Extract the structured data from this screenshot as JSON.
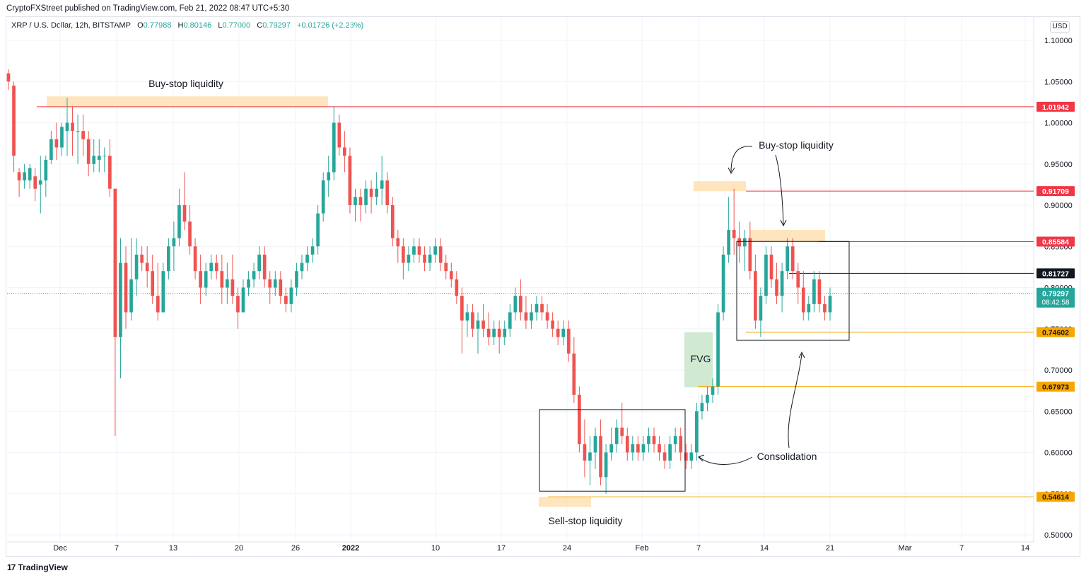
{
  "header": {
    "publisher": "CryptoFXStreet published on TradingView.com, Feb 21, 2022 08:47 UTC+5:30"
  },
  "legend": {
    "symbol": "XRP / U.S. Dollar, 12h, BITSTAMP",
    "open_label": "O",
    "open": "0.77988",
    "high_label": "H",
    "high": "0.80146",
    "low_label": "L",
    "low": "0.77000",
    "close_label": "C",
    "close": "0.79297",
    "change": "+0.01726 (+2.23%)"
  },
  "currency_button": "USD",
  "footer": {
    "brand": "TradingView",
    "logo": "17"
  },
  "colors": {
    "up": "#26a69a",
    "down": "#ef5350",
    "red_level": "#f23645",
    "orange_level": "#f7a600",
    "liquidity_zone": "#ffe0b2",
    "fvg_zone": "#c8e6c9",
    "current_price": "#26a69a",
    "black_level": "#131722"
  },
  "chart_data": {
    "type": "candlestick",
    "timeframe": "12h",
    "ylim": [
      0.49,
      1.1
    ],
    "y_ticks": [
      "1.10000",
      "1.05000",
      "1.00000",
      "0.95000",
      "0.90000",
      "0.85000",
      "0.80000",
      "0.75000",
      "0.70000",
      "0.65000",
      "0.60000",
      "0.55000",
      "0.50000"
    ],
    "x_ticks": [
      "Dec",
      "7",
      "13",
      "20",
      "26",
      "2022",
      "10",
      "17",
      "24",
      "Feb",
      "7",
      "14",
      "21",
      "Mar",
      "7",
      "14"
    ],
    "price_levels": [
      {
        "value": "1.01942",
        "color": "red"
      },
      {
        "value": "0.91709",
        "color": "red"
      },
      {
        "value": "0.85584",
        "color": "red"
      },
      {
        "value": "0.81727",
        "color": "black"
      },
      {
        "value": "0.74602",
        "color": "orange"
      },
      {
        "value": "0.67973",
        "color": "orange"
      },
      {
        "value": "0.54614",
        "color": "orange"
      }
    ],
    "current_price": {
      "value": "0.79297",
      "countdown": "08:42:58"
    },
    "annotations": [
      {
        "text": "Buy-stop liquidity",
        "kind": "zone",
        "price_range": [
          1.019,
          1.032
        ]
      },
      {
        "text": "Buy-stop liquidity",
        "kind": "zone",
        "price_range": [
          0.917,
          0.929
        ]
      },
      {
        "text": "",
        "kind": "zone",
        "price_range": [
          0.856,
          0.87
        ]
      },
      {
        "text": "Sell-stop liquidity",
        "kind": "zone",
        "price_range": [
          0.534,
          0.546
        ]
      },
      {
        "text": "FVG",
        "kind": "gap",
        "price_range": [
          0.679,
          0.746
        ]
      },
      {
        "text": "Consolidation",
        "kind": "box",
        "price_range": [
          0.553,
          0.652
        ]
      },
      {
        "text": "",
        "kind": "box",
        "price_range": [
          0.736,
          0.856
        ]
      }
    ],
    "candles": [
      [
        1.06,
        1.065,
        1.04,
        1.05
      ],
      [
        1.045,
        1.05,
        0.94,
        0.96
      ],
      [
        0.94,
        0.945,
        0.91,
        0.93
      ],
      [
        0.93,
        0.95,
        0.92,
        0.94
      ],
      [
        0.93,
        0.95,
        0.92,
        0.945
      ],
      [
        0.935,
        0.945,
        0.905,
        0.92
      ],
      [
        0.925,
        0.96,
        0.89,
        0.93
      ],
      [
        0.93,
        0.96,
        0.91,
        0.955
      ],
      [
        0.955,
        0.99,
        0.95,
        0.98
      ],
      [
        0.98,
        1.0,
        0.955,
        0.97
      ],
      [
        0.97,
        1.0,
        0.96,
        0.995
      ],
      [
        0.99,
        1.03,
        0.96,
        1.0
      ],
      [
        1.0,
        1.02,
        0.96,
        0.99
      ],
      [
        0.99,
        1.01,
        0.95,
        0.99
      ],
      [
        0.99,
        1.01,
        0.96,
        0.98
      ],
      [
        0.98,
        0.99,
        0.935,
        0.95
      ],
      [
        0.95,
        0.98,
        0.94,
        0.96
      ],
      [
        0.955,
        0.98,
        0.94,
        0.96
      ],
      [
        0.96,
        0.97,
        0.94,
        0.96
      ],
      [
        0.96,
        0.98,
        0.91,
        0.92
      ],
      [
        0.92,
        0.92,
        0.62,
        0.74
      ],
      [
        0.74,
        0.86,
        0.69,
        0.83
      ],
      [
        0.83,
        0.85,
        0.75,
        0.77
      ],
      [
        0.77,
        0.86,
        0.76,
        0.81
      ],
      [
        0.81,
        0.86,
        0.79,
        0.84
      ],
      [
        0.84,
        0.85,
        0.82,
        0.83
      ],
      [
        0.83,
        0.85,
        0.8,
        0.82
      ],
      [
        0.82,
        0.84,
        0.78,
        0.79
      ],
      [
        0.79,
        0.83,
        0.76,
        0.77
      ],
      [
        0.77,
        0.83,
        0.77,
        0.82
      ],
      [
        0.82,
        0.86,
        0.81,
        0.85
      ],
      [
        0.85,
        0.88,
        0.82,
        0.86
      ],
      [
        0.86,
        0.92,
        0.85,
        0.9
      ],
      [
        0.9,
        0.94,
        0.87,
        0.88
      ],
      [
        0.88,
        0.9,
        0.84,
        0.85
      ],
      [
        0.85,
        0.86,
        0.81,
        0.82
      ],
      [
        0.82,
        0.84,
        0.78,
        0.8
      ],
      [
        0.8,
        0.83,
        0.79,
        0.82
      ],
      [
        0.82,
        0.84,
        0.81,
        0.83
      ],
      [
        0.83,
        0.84,
        0.81,
        0.82
      ],
      [
        0.82,
        0.84,
        0.78,
        0.8
      ],
      [
        0.8,
        0.83,
        0.78,
        0.81
      ],
      [
        0.81,
        0.84,
        0.78,
        0.79
      ],
      [
        0.79,
        0.8,
        0.75,
        0.77
      ],
      [
        0.77,
        0.81,
        0.77,
        0.8
      ],
      [
        0.8,
        0.82,
        0.79,
        0.81
      ],
      [
        0.81,
        0.83,
        0.8,
        0.82
      ],
      [
        0.82,
        0.85,
        0.81,
        0.84
      ],
      [
        0.84,
        0.85,
        0.8,
        0.81
      ],
      [
        0.81,
        0.82,
        0.78,
        0.8
      ],
      [
        0.8,
        0.82,
        0.79,
        0.81
      ],
      [
        0.81,
        0.82,
        0.78,
        0.79
      ],
      [
        0.79,
        0.8,
        0.77,
        0.78
      ],
      [
        0.78,
        0.81,
        0.77,
        0.8
      ],
      [
        0.8,
        0.83,
        0.79,
        0.82
      ],
      [
        0.82,
        0.84,
        0.81,
        0.83
      ],
      [
        0.83,
        0.85,
        0.82,
        0.84
      ],
      [
        0.84,
        0.86,
        0.83,
        0.85
      ],
      [
        0.85,
        0.9,
        0.84,
        0.89
      ],
      [
        0.89,
        0.94,
        0.88,
        0.93
      ],
      [
        0.93,
        0.96,
        0.91,
        0.94
      ],
      [
        0.94,
        1.02,
        0.93,
        1.0
      ],
      [
        1.0,
        1.01,
        0.96,
        0.97
      ],
      [
        0.97,
        0.99,
        0.94,
        0.96
      ],
      [
        0.96,
        0.97,
        0.89,
        0.9
      ],
      [
        0.9,
        0.92,
        0.88,
        0.91
      ],
      [
        0.91,
        0.92,
        0.88,
        0.9
      ],
      [
        0.9,
        0.93,
        0.89,
        0.92
      ],
      [
        0.92,
        0.93,
        0.89,
        0.91
      ],
      [
        0.91,
        0.94,
        0.9,
        0.92
      ],
      [
        0.92,
        0.96,
        0.9,
        0.93
      ],
      [
        0.93,
        0.94,
        0.89,
        0.9
      ],
      [
        0.9,
        0.91,
        0.85,
        0.86
      ],
      [
        0.86,
        0.87,
        0.83,
        0.85
      ],
      [
        0.85,
        0.86,
        0.81,
        0.83
      ],
      [
        0.83,
        0.85,
        0.82,
        0.84
      ],
      [
        0.84,
        0.86,
        0.83,
        0.85
      ],
      [
        0.85,
        0.86,
        0.83,
        0.84
      ],
      [
        0.84,
        0.85,
        0.82,
        0.83
      ],
      [
        0.83,
        0.85,
        0.82,
        0.84
      ],
      [
        0.84,
        0.86,
        0.83,
        0.85
      ],
      [
        0.85,
        0.86,
        0.82,
        0.83
      ],
      [
        0.83,
        0.84,
        0.81,
        0.82
      ],
      [
        0.82,
        0.83,
        0.8,
        0.81
      ],
      [
        0.81,
        0.82,
        0.78,
        0.79
      ],
      [
        0.79,
        0.8,
        0.72,
        0.76
      ],
      [
        0.76,
        0.78,
        0.74,
        0.77
      ],
      [
        0.77,
        0.78,
        0.74,
        0.75
      ],
      [
        0.75,
        0.77,
        0.72,
        0.76
      ],
      [
        0.76,
        0.78,
        0.74,
        0.75
      ],
      [
        0.75,
        0.77,
        0.73,
        0.74
      ],
      [
        0.74,
        0.76,
        0.73,
        0.75
      ],
      [
        0.75,
        0.76,
        0.72,
        0.74
      ],
      [
        0.74,
        0.76,
        0.73,
        0.75
      ],
      [
        0.75,
        0.78,
        0.74,
        0.77
      ],
      [
        0.77,
        0.8,
        0.76,
        0.79
      ],
      [
        0.79,
        0.81,
        0.76,
        0.77
      ],
      [
        0.77,
        0.79,
        0.75,
        0.76
      ],
      [
        0.76,
        0.78,
        0.75,
        0.77
      ],
      [
        0.77,
        0.79,
        0.76,
        0.78
      ],
      [
        0.78,
        0.79,
        0.76,
        0.77
      ],
      [
        0.77,
        0.78,
        0.75,
        0.76
      ],
      [
        0.76,
        0.77,
        0.74,
        0.75
      ],
      [
        0.75,
        0.76,
        0.73,
        0.74
      ],
      [
        0.74,
        0.76,
        0.73,
        0.75
      ],
      [
        0.75,
        0.76,
        0.71,
        0.72
      ],
      [
        0.72,
        0.74,
        0.66,
        0.67
      ],
      [
        0.67,
        0.68,
        0.6,
        0.61
      ],
      [
        0.61,
        0.64,
        0.57,
        0.59
      ],
      [
        0.59,
        0.62,
        0.56,
        0.6
      ],
      [
        0.6,
        0.63,
        0.58,
        0.62
      ],
      [
        0.62,
        0.64,
        0.56,
        0.57
      ],
      [
        0.57,
        0.61,
        0.55,
        0.6
      ],
      [
        0.6,
        0.63,
        0.59,
        0.61
      ],
      [
        0.61,
        0.64,
        0.6,
        0.63
      ],
      [
        0.63,
        0.66,
        0.61,
        0.62
      ],
      [
        0.62,
        0.63,
        0.59,
        0.6
      ],
      [
        0.6,
        0.62,
        0.59,
        0.61
      ],
      [
        0.61,
        0.62,
        0.59,
        0.6
      ],
      [
        0.6,
        0.62,
        0.59,
        0.61
      ],
      [
        0.61,
        0.63,
        0.6,
        0.62
      ],
      [
        0.62,
        0.63,
        0.6,
        0.61
      ],
      [
        0.61,
        0.62,
        0.59,
        0.6
      ],
      [
        0.6,
        0.61,
        0.58,
        0.59
      ],
      [
        0.59,
        0.62,
        0.58,
        0.61
      ],
      [
        0.61,
        0.63,
        0.6,
        0.62
      ],
      [
        0.62,
        0.63,
        0.59,
        0.6
      ],
      [
        0.6,
        0.61,
        0.58,
        0.59
      ],
      [
        0.59,
        0.61,
        0.58,
        0.6
      ],
      [
        0.6,
        0.66,
        0.59,
        0.65
      ],
      [
        0.65,
        0.67,
        0.64,
        0.66
      ],
      [
        0.66,
        0.68,
        0.65,
        0.67
      ],
      [
        0.67,
        0.69,
        0.66,
        0.68
      ],
      [
        0.68,
        0.78,
        0.67,
        0.77
      ],
      [
        0.77,
        0.85,
        0.76,
        0.84
      ],
      [
        0.84,
        0.91,
        0.83,
        0.87
      ],
      [
        0.87,
        0.92,
        0.84,
        0.86
      ],
      [
        0.86,
        0.88,
        0.83,
        0.85
      ],
      [
        0.85,
        0.87,
        0.82,
        0.86
      ],
      [
        0.86,
        0.88,
        0.81,
        0.82
      ],
      [
        0.82,
        0.84,
        0.75,
        0.76
      ],
      [
        0.76,
        0.8,
        0.74,
        0.79
      ],
      [
        0.79,
        0.85,
        0.78,
        0.84
      ],
      [
        0.84,
        0.85,
        0.8,
        0.81
      ],
      [
        0.81,
        0.83,
        0.78,
        0.79
      ],
      [
        0.79,
        0.83,
        0.77,
        0.82
      ],
      [
        0.82,
        0.86,
        0.81,
        0.85
      ],
      [
        0.85,
        0.86,
        0.81,
        0.82
      ],
      [
        0.82,
        0.83,
        0.78,
        0.8
      ],
      [
        0.8,
        0.82,
        0.76,
        0.77
      ],
      [
        0.77,
        0.79,
        0.76,
        0.78
      ],
      [
        0.78,
        0.82,
        0.77,
        0.81
      ],
      [
        0.81,
        0.82,
        0.77,
        0.78
      ],
      [
        0.78,
        0.79,
        0.76,
        0.77
      ],
      [
        0.77,
        0.8,
        0.76,
        0.79
      ]
    ]
  }
}
